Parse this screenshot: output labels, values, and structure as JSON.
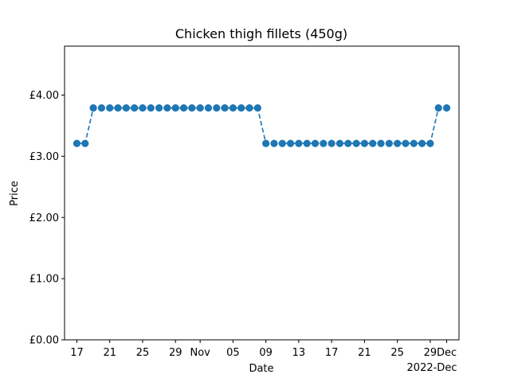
{
  "chart_data": {
    "type": "line",
    "title": "Chicken thigh fillets (450g)",
    "xlabel": "Date",
    "ylabel": "Price",
    "x_offset_label": "2022-Dec",
    "x_range": [
      "2022-10-15T12:00",
      "2022-12-02T12:00"
    ],
    "y_range": [
      0,
      4.8
    ],
    "y_ticks": [
      0,
      1,
      2,
      3,
      4
    ],
    "y_tick_labels": [
      "£0.00",
      "£1.00",
      "£2.00",
      "£3.00",
      "£4.00"
    ],
    "x_ticks": [
      "2022-10-17",
      "2022-10-21",
      "2022-10-25",
      "2022-10-29",
      "2022-11-01",
      "2022-11-05",
      "2022-11-09",
      "2022-11-13",
      "2022-11-17",
      "2022-11-21",
      "2022-11-25",
      "2022-11-29",
      "2022-12-01"
    ],
    "x_tick_labels": [
      "17",
      "21",
      "25",
      "29",
      "Nov",
      "05",
      "09",
      "13",
      "17",
      "21",
      "25",
      "29",
      "Dec"
    ],
    "grid": false,
    "color": "#1f77b4",
    "line_style": "dashed",
    "marker": "circle",
    "series": [
      {
        "x": [
          "2022-10-17",
          "2022-10-18",
          "2022-10-19",
          "2022-10-20",
          "2022-10-21",
          "2022-10-22",
          "2022-10-23",
          "2022-10-24",
          "2022-10-25",
          "2022-10-26",
          "2022-10-27",
          "2022-10-28",
          "2022-10-29",
          "2022-10-30",
          "2022-10-31",
          "2022-11-01",
          "2022-11-02",
          "2022-11-03",
          "2022-11-04",
          "2022-11-05",
          "2022-11-06",
          "2022-11-07",
          "2022-11-08",
          "2022-11-09",
          "2022-11-10",
          "2022-11-11",
          "2022-11-12",
          "2022-11-13",
          "2022-11-14",
          "2022-11-15",
          "2022-11-16",
          "2022-11-17",
          "2022-11-18",
          "2022-11-19",
          "2022-11-20",
          "2022-11-21",
          "2022-11-22",
          "2022-11-23",
          "2022-11-24",
          "2022-11-25",
          "2022-11-26",
          "2022-11-27",
          "2022-11-28",
          "2022-11-29",
          "2022-11-30",
          "2022-12-01"
        ],
        "y": [
          3.21,
          3.21,
          3.79,
          3.79,
          3.79,
          3.79,
          3.79,
          3.79,
          3.79,
          3.79,
          3.79,
          3.79,
          3.79,
          3.79,
          3.79,
          3.79,
          3.79,
          3.79,
          3.79,
          3.79,
          3.79,
          3.79,
          3.79,
          3.21,
          3.21,
          3.21,
          3.21,
          3.21,
          3.21,
          3.21,
          3.21,
          3.21,
          3.21,
          3.21,
          3.21,
          3.21,
          3.21,
          3.21,
          3.21,
          3.21,
          3.21,
          3.21,
          3.21,
          3.21,
          3.79,
          3.79
        ]
      }
    ]
  }
}
